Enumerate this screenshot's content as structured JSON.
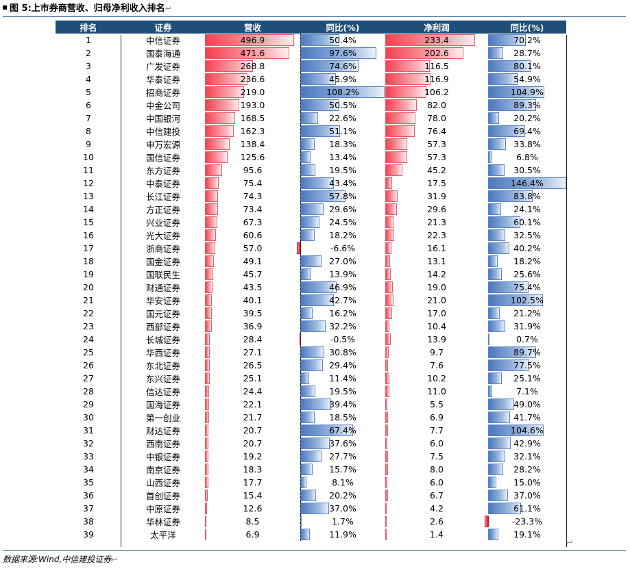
{
  "title": "图 5:上市券商营收、归母净利收入排名",
  "title_mark": "↩",
  "source": "数据来源:Wind,中信建投证券",
  "source_mark": "↩",
  "end_mark": "↩",
  "colors": {
    "header_bg": "#1f4e79",
    "pos_bar": "#f4414f",
    "growth_bar": "#4a78bf",
    "neg_bar": "#d8081e"
  },
  "table": {
    "headers": [
      "排名",
      "证券",
      "营收",
      "同比(%)",
      "净利润",
      "同比(%)"
    ],
    "rows": [
      {
        "rank": "1",
        "name": "中信证券",
        "revenue": "496.9",
        "revenue_yoy": "50.4%",
        "net_profit": "233.4",
        "np_yoy": "70.2%"
      },
      {
        "rank": "2",
        "name": "国泰海通",
        "revenue": "471.6",
        "revenue_yoy": "97.6%",
        "net_profit": "202.6",
        "np_yoy": "28.7%"
      },
      {
        "rank": "3",
        "name": "广发证券",
        "revenue": "268.8",
        "revenue_yoy": "74.6%",
        "net_profit": "116.5",
        "np_yoy": "80.1%"
      },
      {
        "rank": "4",
        "name": "华泰证券",
        "revenue": "236.6",
        "revenue_yoy": "45.9%",
        "net_profit": "116.9",
        "np_yoy": "54.9%"
      },
      {
        "rank": "5",
        "name": "招商证券",
        "revenue": "219.0",
        "revenue_yoy": "108.2%",
        "net_profit": "106.2",
        "np_yoy": "104.9%"
      },
      {
        "rank": "6",
        "name": "中金公司",
        "revenue": "193.0",
        "revenue_yoy": "50.5%",
        "net_profit": "82.0",
        "np_yoy": "89.3%"
      },
      {
        "rank": "7",
        "name": "中国银河",
        "revenue": "168.5",
        "revenue_yoy": "22.6%",
        "net_profit": "78.0",
        "np_yoy": "20.2%"
      },
      {
        "rank": "8",
        "name": "中信建投",
        "revenue": "162.3",
        "revenue_yoy": "51.1%",
        "net_profit": "76.4",
        "np_yoy": "69.4%"
      },
      {
        "rank": "9",
        "name": "申万宏源",
        "revenue": "138.4",
        "revenue_yoy": "18.3%",
        "net_profit": "57.3",
        "np_yoy": "33.8%"
      },
      {
        "rank": "10",
        "name": "国信证券",
        "revenue": "125.6",
        "revenue_yoy": "13.4%",
        "net_profit": "57.3",
        "np_yoy": "6.8%"
      },
      {
        "rank": "11",
        "name": "东方证券",
        "revenue": "95.6",
        "revenue_yoy": "19.5%",
        "net_profit": "45.2",
        "np_yoy": "30.5%"
      },
      {
        "rank": "12",
        "name": "中泰证券",
        "revenue": "75.4",
        "revenue_yoy": "43.4%",
        "net_profit": "17.5",
        "np_yoy": "146.4%"
      },
      {
        "rank": "13",
        "name": "长江证券",
        "revenue": "74.3",
        "revenue_yoy": "57.8%",
        "net_profit": "31.9",
        "np_yoy": "83.8%"
      },
      {
        "rank": "14",
        "name": "方正证券",
        "revenue": "73.4",
        "revenue_yoy": "29.6%",
        "net_profit": "29.6",
        "np_yoy": "24.1%"
      },
      {
        "rank": "15",
        "name": "兴业证券",
        "revenue": "67.3",
        "revenue_yoy": "24.5%",
        "net_profit": "21.3",
        "np_yoy": "60.1%"
      },
      {
        "rank": "16",
        "name": "光大证券",
        "revenue": "60.6",
        "revenue_yoy": "18.2%",
        "net_profit": "22.3",
        "np_yoy": "32.5%"
      },
      {
        "rank": "17",
        "name": "浙商证券",
        "revenue": "57.0",
        "revenue_yoy": "-6.6%",
        "net_profit": "16.1",
        "np_yoy": "40.2%"
      },
      {
        "rank": "18",
        "name": "国金证券",
        "revenue": "49.1",
        "revenue_yoy": "27.0%",
        "net_profit": "13.1",
        "np_yoy": "18.2%"
      },
      {
        "rank": "19",
        "name": "国联民生",
        "revenue": "45.7",
        "revenue_yoy": "13.9%",
        "net_profit": "14.2",
        "np_yoy": "25.6%"
      },
      {
        "rank": "20",
        "name": "财通证券",
        "revenue": "43.5",
        "revenue_yoy": "46.9%",
        "net_profit": "19.0",
        "np_yoy": "75.4%"
      },
      {
        "rank": "21",
        "name": "华安证券",
        "revenue": "40.1",
        "revenue_yoy": "42.7%",
        "net_profit": "21.0",
        "np_yoy": "102.5%"
      },
      {
        "rank": "22",
        "name": "国元证券",
        "revenue": "39.5",
        "revenue_yoy": "16.2%",
        "net_profit": "17.0",
        "np_yoy": "21.2%"
      },
      {
        "rank": "23",
        "name": "西部证券",
        "revenue": "36.9",
        "revenue_yoy": "32.2%",
        "net_profit": "10.4",
        "np_yoy": "31.9%"
      },
      {
        "rank": "24",
        "name": "长城证券",
        "revenue": "28.4",
        "revenue_yoy": "-0.5%",
        "net_profit": "13.9",
        "np_yoy": "0.7%"
      },
      {
        "rank": "25",
        "name": "华西证券",
        "revenue": "27.1",
        "revenue_yoy": "30.8%",
        "net_profit": "9.7",
        "np_yoy": "89.7%"
      },
      {
        "rank": "26",
        "name": "东北证券",
        "revenue": "26.5",
        "revenue_yoy": "29.4%",
        "net_profit": "7.6",
        "np_yoy": "77.5%"
      },
      {
        "rank": "27",
        "name": "东兴证券",
        "revenue": "25.1",
        "revenue_yoy": "11.4%",
        "net_profit": "10.2",
        "np_yoy": "25.1%"
      },
      {
        "rank": "28",
        "name": "信达证券",
        "revenue": "24.4",
        "revenue_yoy": "19.5%",
        "net_profit": "11.0",
        "np_yoy": "7.1%"
      },
      {
        "rank": "29",
        "name": "国海证券",
        "revenue": "22.1",
        "revenue_yoy": "39.4%",
        "net_profit": "5.5",
        "np_yoy": "49.0%"
      },
      {
        "rank": "30",
        "name": "第一创业",
        "revenue": "21.7",
        "revenue_yoy": "18.5%",
        "net_profit": "6.9",
        "np_yoy": "41.7%"
      },
      {
        "rank": "31",
        "name": "财达证券",
        "revenue": "20.7",
        "revenue_yoy": "67.4%",
        "net_profit": "7.7",
        "np_yoy": "104.6%"
      },
      {
        "rank": "32",
        "name": "西南证券",
        "revenue": "20.7",
        "revenue_yoy": "37.6%",
        "net_profit": "6.0",
        "np_yoy": "42.9%"
      },
      {
        "rank": "33",
        "name": "中银证券",
        "revenue": "19.2",
        "revenue_yoy": "27.7%",
        "net_profit": "7.5",
        "np_yoy": "32.1%"
      },
      {
        "rank": "34",
        "name": "南京证券",
        "revenue": "18.3",
        "revenue_yoy": "15.7%",
        "net_profit": "8.0",
        "np_yoy": "28.2%"
      },
      {
        "rank": "35",
        "name": "山西证券",
        "revenue": "17.7",
        "revenue_yoy": "8.1%",
        "net_profit": "6.0",
        "np_yoy": "15.0%"
      },
      {
        "rank": "36",
        "name": "首创证券",
        "revenue": "15.4",
        "revenue_yoy": "20.2%",
        "net_profit": "6.7",
        "np_yoy": "37.0%"
      },
      {
        "rank": "37",
        "name": "中原证券",
        "revenue": "12.6",
        "revenue_yoy": "37.0%",
        "net_profit": "4.2",
        "np_yoy": "61.1%"
      },
      {
        "rank": "38",
        "name": "华林证券",
        "revenue": "8.5",
        "revenue_yoy": "1.7%",
        "net_profit": "2.6",
        "np_yoy": "-23.3%"
      },
      {
        "rank": "39",
        "name": "太平洋",
        "revenue": "6.9",
        "revenue_yoy": "11.9%",
        "net_profit": "1.4",
        "np_yoy": "19.1%"
      }
    ]
  }
}
